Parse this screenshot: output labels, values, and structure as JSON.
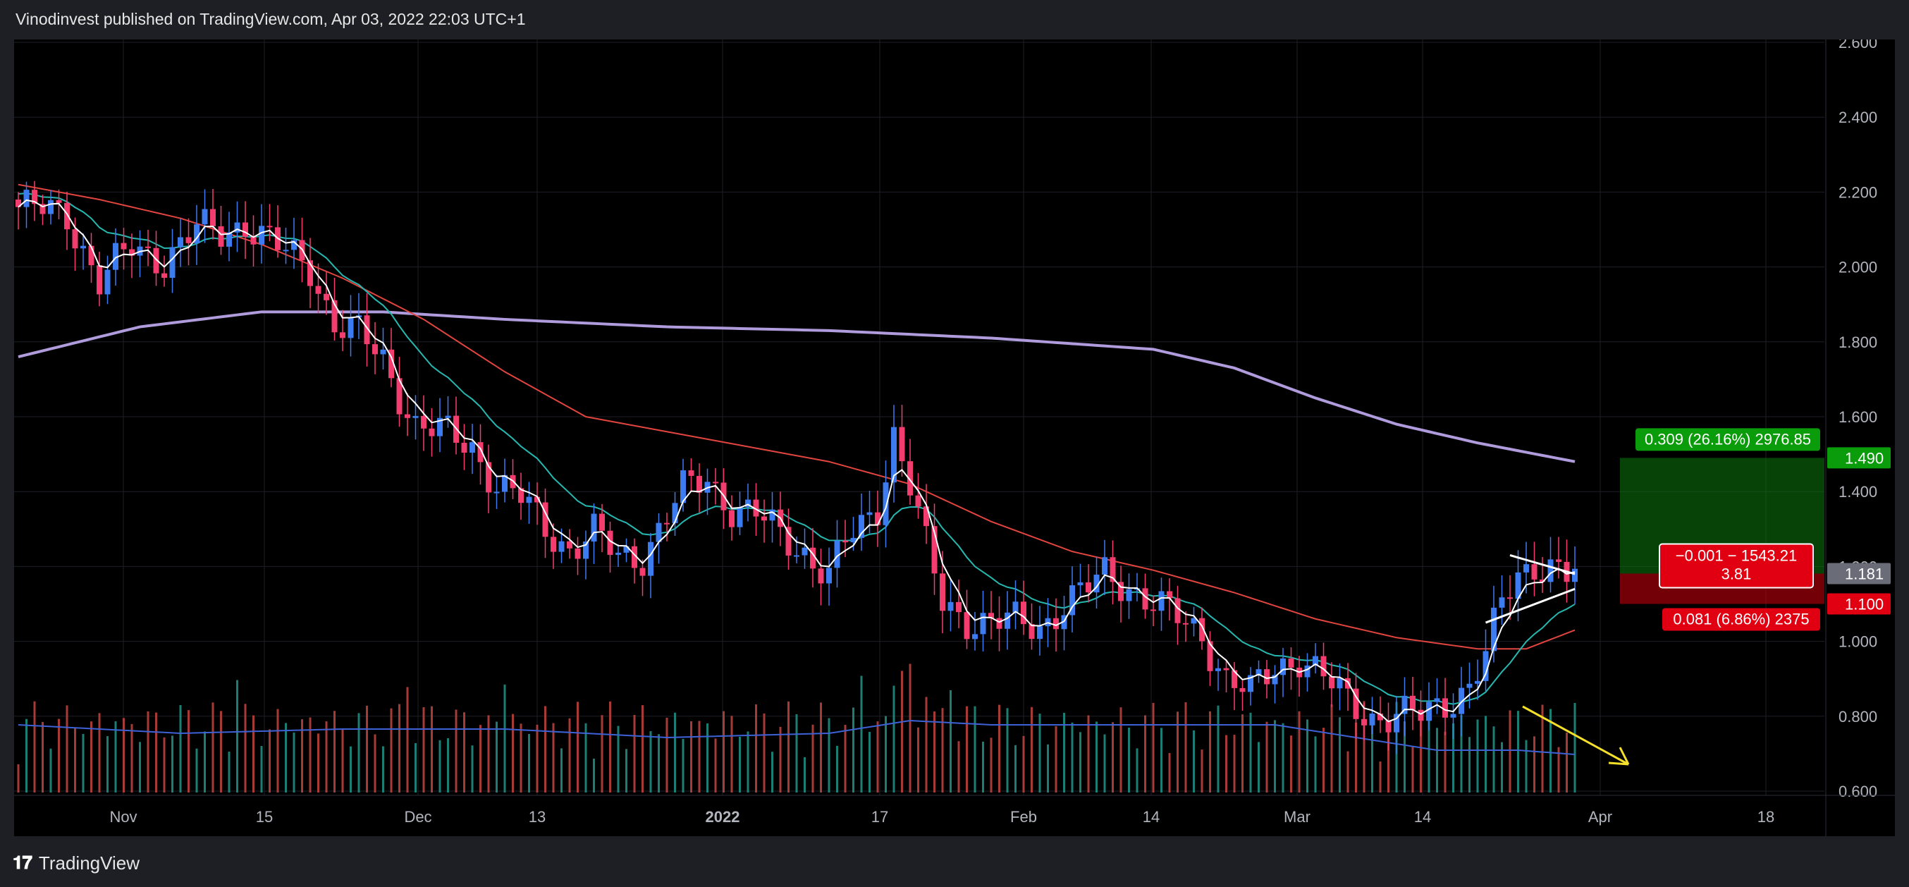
{
  "header": {
    "caption": "Vinodinvest published on TradingView.com, Apr 03, 2022 22:03 UTC+1"
  },
  "footer": {
    "brand": "TradingView",
    "logo_icon": "tradingview-logo-icon"
  },
  "colors": {
    "bg": "#000000",
    "up": "#3d7bf0",
    "down": "#f23d6e",
    "ma_fast": "#ffffff",
    "ma_teal": "#26b8b0",
    "ma_red": "#e2453f",
    "ma_long": "#b09bdc",
    "vol_up": "#1f8c80",
    "vol_down": "#b8403c",
    "vol_ma": "#3d62d6",
    "profit": "#0c7a0c",
    "loss": "#c0000a",
    "arrow": "#f5e02a"
  },
  "chart_data": {
    "type": "candlestick",
    "yaxis": {
      "ticks": [
        "2.600",
        "2.400",
        "2.200",
        "2.000",
        "1.800",
        "1.600",
        "1.400",
        "1.200",
        "1.000",
        "0.800",
        "0.600"
      ],
      "ylim": [
        0.6,
        2.6
      ]
    },
    "xaxis": {
      "labels": [
        "Nov",
        "15",
        "Dec",
        "13",
        "2022",
        "17",
        "Feb",
        "14",
        "Mar",
        "14",
        "Apr",
        "18"
      ]
    },
    "price_labels": {
      "current": "1.181",
      "target": "1.490",
      "stop": "1.100"
    },
    "position": {
      "target_label": "0.309 (26.16%) 2976.85",
      "current_label_line1": "−0.001 − 1543.21",
      "current_label_line2": "3.81",
      "stop_label": "0.081 (6.86%) 2375",
      "entry": 1.181,
      "target": 1.49,
      "stop": 1.1
    },
    "ohlc_keypoints": [
      [
        0,
        2.16
      ],
      [
        6,
        2.14
      ],
      [
        10,
        1.96
      ],
      [
        14,
        2.05
      ],
      [
        18,
        2.02
      ],
      [
        22,
        2.1
      ],
      [
        25,
        2.09
      ],
      [
        28,
        2.12
      ],
      [
        32,
        2.05
      ],
      [
        36,
        2.0
      ],
      [
        39,
        1.85
      ],
      [
        42,
        1.82
      ],
      [
        45,
        1.75
      ],
      [
        49,
        1.58
      ],
      [
        53,
        1.55
      ],
      [
        56,
        1.52
      ],
      [
        59,
        1.42
      ],
      [
        62,
        1.38
      ],
      [
        65,
        1.3
      ],
      [
        68,
        1.25
      ],
      [
        71,
        1.29
      ],
      [
        74,
        1.22
      ],
      [
        77,
        1.23
      ],
      [
        80,
        1.34
      ],
      [
        82,
        1.4
      ],
      [
        85,
        1.43
      ],
      [
        88,
        1.36
      ],
      [
        91,
        1.34
      ],
      [
        94,
        1.28
      ],
      [
        97,
        1.24
      ],
      [
        100,
        1.18
      ],
      [
        102,
        1.26
      ],
      [
        104,
        1.3
      ],
      [
        106,
        1.36
      ],
      [
        108,
        1.56
      ],
      [
        110,
        1.42
      ],
      [
        112,
        1.25
      ],
      [
        114,
        1.1
      ],
      [
        117,
        1.06
      ],
      [
        120,
        1.05
      ],
      [
        123,
        1.05
      ],
      [
        126,
        1.04
      ],
      [
        129,
        1.1
      ],
      [
        132,
        1.14
      ],
      [
        134,
        1.18
      ],
      [
        137,
        1.15
      ],
      [
        140,
        1.1
      ],
      [
        143,
        1.06
      ],
      [
        146,
        1.02
      ],
      [
        149,
        0.9
      ],
      [
        152,
        0.86
      ],
      [
        155,
        0.93
      ],
      [
        158,
        0.96
      ],
      [
        161,
        0.9
      ],
      [
        164,
        0.84
      ],
      [
        167,
        0.8
      ],
      [
        170,
        0.8
      ],
      [
        173,
        0.8
      ],
      [
        176,
        0.84
      ],
      [
        179,
        0.88
      ],
      [
        181,
        0.96
      ],
      [
        183,
        1.1
      ],
      [
        185,
        1.18
      ],
      [
        187,
        1.21
      ],
      [
        189,
        1.2
      ],
      [
        191,
        1.17
      ],
      [
        192,
        1.18
      ]
    ],
    "ma_long_keypoints": [
      [
        0,
        1.76
      ],
      [
        15,
        1.84
      ],
      [
        30,
        1.88
      ],
      [
        45,
        1.88
      ],
      [
        60,
        1.86
      ],
      [
        80,
        1.84
      ],
      [
        100,
        1.83
      ],
      [
        120,
        1.81
      ],
      [
        140,
        1.78
      ],
      [
        150,
        1.73
      ],
      [
        160,
        1.65
      ],
      [
        170,
        1.58
      ],
      [
        180,
        1.53
      ],
      [
        192,
        1.48
      ]
    ],
    "ma_red_keypoints": [
      [
        0,
        2.22
      ],
      [
        10,
        2.18
      ],
      [
        20,
        2.13
      ],
      [
        30,
        2.06
      ],
      [
        40,
        1.97
      ],
      [
        50,
        1.86
      ],
      [
        60,
        1.72
      ],
      [
        70,
        1.6
      ],
      [
        80,
        1.56
      ],
      [
        90,
        1.52
      ],
      [
        100,
        1.48
      ],
      [
        110,
        1.42
      ],
      [
        120,
        1.32
      ],
      [
        130,
        1.24
      ],
      [
        140,
        1.19
      ],
      [
        150,
        1.13
      ],
      [
        160,
        1.06
      ],
      [
        170,
        1.01
      ],
      [
        180,
        0.98
      ],
      [
        186,
        0.98
      ],
      [
        192,
        1.03
      ]
    ],
    "volume_ma_keypoints": [
      [
        0,
        0.16
      ],
      [
        20,
        0.14
      ],
      [
        40,
        0.15
      ],
      [
        60,
        0.15
      ],
      [
        80,
        0.13
      ],
      [
        100,
        0.14
      ],
      [
        110,
        0.17
      ],
      [
        120,
        0.16
      ],
      [
        140,
        0.16
      ],
      [
        155,
        0.16
      ],
      [
        165,
        0.13
      ],
      [
        175,
        0.1
      ],
      [
        185,
        0.1
      ],
      [
        192,
        0.09
      ]
    ]
  }
}
